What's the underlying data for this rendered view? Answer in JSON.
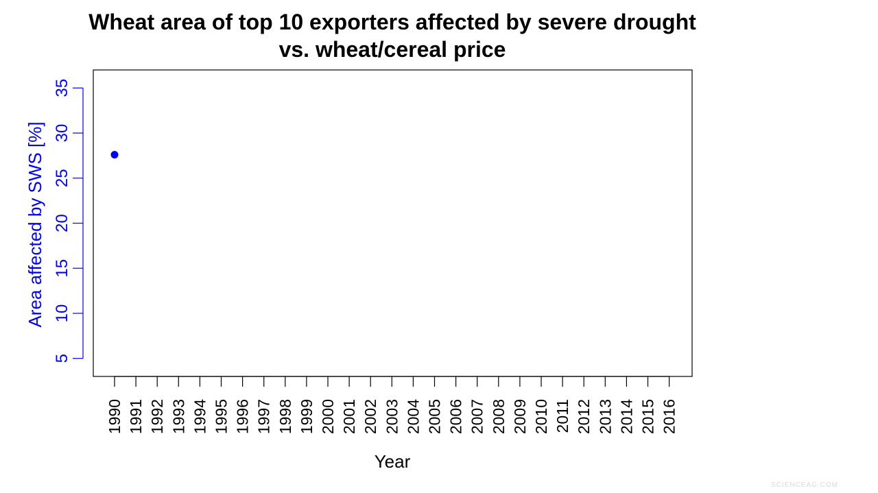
{
  "chart_data": {
    "type": "scatter",
    "title_lines": [
      "Wheat area of top 10 exporters affected by severe drought",
      "vs. wheat/cereal price"
    ],
    "xlabel": "Year",
    "ylabel": "Area affected by SWS [%]",
    "x_categories": [
      "1990",
      "1991",
      "1992",
      "1993",
      "1994",
      "1995",
      "1996",
      "1997",
      "1998",
      "1999",
      "2000",
      "2001",
      "2002",
      "2003",
      "2004",
      "2005",
      "2006",
      "2007",
      "2008",
      "2009",
      "2010",
      "2011",
      "2012",
      "2013",
      "2014",
      "2015",
      "2016"
    ],
    "y_ticks": [
      5,
      10,
      15,
      20,
      25,
      30,
      35
    ],
    "ylim": [
      3,
      37
    ],
    "series": [
      {
        "name": "Area affected by SWS",
        "x": [
          "1990"
        ],
        "y": [
          27.6
        ],
        "color": "#0000ff"
      }
    ],
    "axis_color": "#0000ff"
  },
  "watermark": "SCIENCEAG.COM"
}
